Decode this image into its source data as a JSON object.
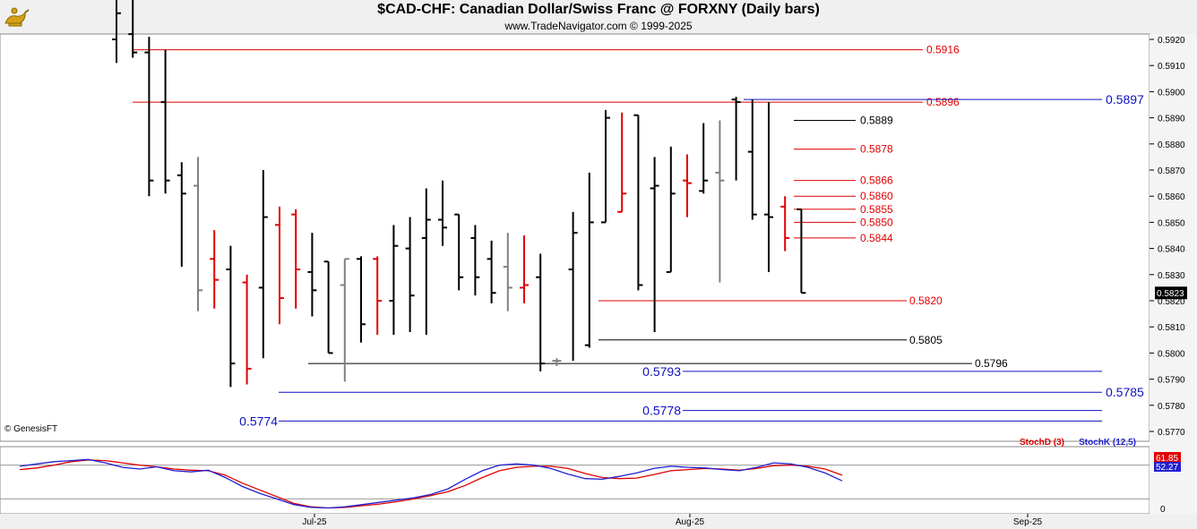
{
  "header": {
    "title": "$CAD-CHF:  Canadian Dollar/Swiss Franc @ FORXNY  (Daily bars)",
    "subtitle": "www.TradeNavigator.com © 1999-2025",
    "credit": "© GenesisFT"
  },
  "colors": {
    "up_bar": "#000000",
    "down_bar": "#e00000",
    "neutral_bar": "#808080",
    "resistance_line": "#e00000",
    "support_line": "#1010c0",
    "stoch_d": "#e00000",
    "stoch_k": "#2020d0"
  },
  "chart_data": [
    {
      "type": "ohlc",
      "title": "$CAD-CHF:  Canadian Dollar/Swiss Franc @ FORXNY  (Daily bars)",
      "ylim": [
        0.577,
        0.5924
      ],
      "y_ticks": [
        "0.5920",
        "0.5910",
        "0.5900",
        "0.5890",
        "0.5880",
        "0.5870",
        "0.5860",
        "0.5850",
        "0.5840",
        "0.5830",
        "0.5820",
        "0.5810",
        "0.5800",
        "0.5790",
        "0.5780",
        "0.5770"
      ],
      "x_tick_labels": [
        {
          "label": "Jul-25",
          "bar_index": 10
        },
        {
          "label": "Aug-25",
          "bar_index": 32
        },
        {
          "label": "Sep-25",
          "bar_index": 53
        }
      ],
      "last_price": "0.5823",
      "bars": [
        {
          "o": 0.592,
          "h": 0.5938,
          "l": 0.5911,
          "c": 0.593,
          "col": "up"
        },
        {
          "o": 0.5922,
          "h": 0.5945,
          "l": 0.5913,
          "c": 0.5915,
          "col": "up"
        },
        {
          "o": 0.5915,
          "h": 0.5921,
          "l": 0.586,
          "c": 0.5866,
          "col": "up"
        },
        {
          "o": 0.5896,
          "h": 0.5916,
          "l": 0.5861,
          "c": 0.5866,
          "col": "up"
        },
        {
          "o": 0.5868,
          "h": 0.5873,
          "l": 0.5833,
          "c": 0.5861,
          "col": "up"
        },
        {
          "o": 0.5864,
          "h": 0.5875,
          "l": 0.5816,
          "c": 0.5824,
          "col": "neutral"
        },
        {
          "o": 0.5836,
          "h": 0.5847,
          "l": 0.5817,
          "c": 0.5828,
          "col": "down"
        },
        {
          "o": 0.5832,
          "h": 0.5841,
          "l": 0.5787,
          "c": 0.5796,
          "col": "up"
        },
        {
          "o": 0.5827,
          "h": 0.583,
          "l": 0.5788,
          "c": 0.5794,
          "col": "down"
        },
        {
          "o": 0.5825,
          "h": 0.587,
          "l": 0.5798,
          "c": 0.5852,
          "col": "up"
        },
        {
          "o": 0.5849,
          "h": 0.5856,
          "l": 0.5811,
          "c": 0.5821,
          "col": "down"
        },
        {
          "o": 0.5853,
          "h": 0.5855,
          "l": 0.5817,
          "c": 0.5832,
          "col": "down"
        },
        {
          "o": 0.5831,
          "h": 0.5846,
          "l": 0.5814,
          "c": 0.5824,
          "col": "up"
        },
        {
          "o": 0.5835,
          "h": 0.5835,
          "l": 0.58,
          "c": 0.58,
          "col": "up"
        },
        {
          "o": 0.5826,
          "h": 0.5836,
          "l": 0.5789,
          "c": 0.5836,
          "col": "neutral"
        },
        {
          "o": 0.5836,
          "h": 0.5837,
          "l": 0.5804,
          "c": 0.5811,
          "col": "up"
        },
        {
          "o": 0.5836,
          "h": 0.5837,
          "l": 0.5807,
          "c": 0.582,
          "col": "down"
        },
        {
          "o": 0.582,
          "h": 0.5849,
          "l": 0.5807,
          "c": 0.5841,
          "col": "up"
        },
        {
          "o": 0.584,
          "h": 0.5852,
          "l": 0.5808,
          "c": 0.5822,
          "col": "up"
        },
        {
          "o": 0.5844,
          "h": 0.5863,
          "l": 0.5807,
          "c": 0.5851,
          "col": "up"
        },
        {
          "o": 0.5851,
          "h": 0.5866,
          "l": 0.5841,
          "c": 0.5848,
          "col": "up"
        },
        {
          "o": 0.5853,
          "h": 0.5853,
          "l": 0.5824,
          "c": 0.5829,
          "col": "up"
        },
        {
          "o": 0.5844,
          "h": 0.5849,
          "l": 0.5822,
          "c": 0.5829,
          "col": "up"
        },
        {
          "o": 0.5836,
          "h": 0.5843,
          "l": 0.5819,
          "c": 0.5823,
          "col": "up"
        },
        {
          "o": 0.5833,
          "h": 0.5846,
          "l": 0.5816,
          "c": 0.5825,
          "col": "neutral"
        },
        {
          "o": 0.5825,
          "h": 0.5845,
          "l": 0.5819,
          "c": 0.5826,
          "col": "down"
        },
        {
          "o": 0.5829,
          "h": 0.5838,
          "l": 0.5793,
          "c": 0.5796,
          "col": "up"
        },
        {
          "o": 0.5797,
          "h": 0.5798,
          "l": 0.5795,
          "c": 0.5797,
          "col": "neutral"
        },
        {
          "o": 0.5832,
          "h": 0.5854,
          "l": 0.5797,
          "c": 0.5846,
          "col": "up"
        },
        {
          "o": 0.5803,
          "h": 0.5869,
          "l": 0.5802,
          "c": 0.585,
          "col": "up"
        },
        {
          "o": 0.585,
          "h": 0.5893,
          "l": 0.585,
          "c": 0.589,
          "col": "up"
        },
        {
          "o": 0.5854,
          "h": 0.5892,
          "l": 0.5854,
          "c": 0.5861,
          "col": "down"
        },
        {
          "o": 0.5891,
          "h": 0.5891,
          "l": 0.5824,
          "c": 0.5826,
          "col": "up"
        },
        {
          "o": 0.5863,
          "h": 0.5875,
          "l": 0.5808,
          "c": 0.5864,
          "col": "up"
        },
        {
          "o": 0.5831,
          "h": 0.5879,
          "l": 0.5831,
          "c": 0.5861,
          "col": "up"
        },
        {
          "o": 0.5866,
          "h": 0.5876,
          "l": 0.5852,
          "c": 0.5865,
          "col": "down"
        },
        {
          "o": 0.5862,
          "h": 0.5888,
          "l": 0.5861,
          "c": 0.5866,
          "col": "up"
        },
        {
          "o": 0.5869,
          "h": 0.5889,
          "l": 0.5827,
          "c": 0.5866,
          "col": "neutral"
        },
        {
          "o": 0.5897,
          "h": 0.5898,
          "l": 0.5866,
          "c": 0.5896,
          "col": "up"
        },
        {
          "o": 0.5877,
          "h": 0.5897,
          "l": 0.5851,
          "c": 0.5853,
          "col": "up"
        },
        {
          "o": 0.5853,
          "h": 0.5896,
          "l": 0.5831,
          "c": 0.5852,
          "col": "up"
        },
        {
          "o": 0.5856,
          "h": 0.586,
          "l": 0.5839,
          "c": 0.5844,
          "col": "down"
        },
        {
          "o": 0.5855,
          "h": 0.5855,
          "l": 0.5823,
          "c": 0.5823,
          "col": "up"
        }
      ],
      "levels": [
        {
          "value": 0.5916,
          "label": "0.5916",
          "kind": "resistance",
          "from_bar": 1,
          "to_bar": 40
        },
        {
          "value": 0.5896,
          "label": "0.5896",
          "kind": "resistance",
          "from_bar": 1,
          "to_bar": 40
        },
        {
          "value": 0.5897,
          "label": "0.5897",
          "kind": "support",
          "from_bar": 38,
          "to_bar": 50
        },
        {
          "value": 0.5889,
          "label": "0.5889",
          "kind": "neutral",
          "from_bar": 39,
          "to_bar": 43
        },
        {
          "value": 0.5878,
          "label": "0.5878",
          "kind": "resistance",
          "from_bar": 39,
          "to_bar": 43
        },
        {
          "value": 0.5866,
          "label": "0.5866",
          "kind": "resistance",
          "from_bar": 39,
          "to_bar": 43
        },
        {
          "value": 0.586,
          "label": "0.5860",
          "kind": "resistance",
          "from_bar": 39,
          "to_bar": 43
        },
        {
          "value": 0.5855,
          "label": "0.5855",
          "kind": "resistance",
          "from_bar": 39,
          "to_bar": 43
        },
        {
          "value": 0.585,
          "label": "0.5850",
          "kind": "resistance",
          "from_bar": 39,
          "to_bar": 43
        },
        {
          "value": 0.5844,
          "label": "0.5844",
          "kind": "resistance",
          "from_bar": 39,
          "to_bar": 43
        },
        {
          "value": 0.582,
          "label": "0.5820",
          "kind": "resistance",
          "from_bar": 26,
          "to_bar": 40
        },
        {
          "value": 0.5805,
          "label": "0.5805",
          "kind": "neutral",
          "from_bar": 26,
          "to_bar": 40
        },
        {
          "value": 0.5796,
          "label": "0.5796",
          "kind": "neutral",
          "from_bar": 7,
          "to_bar": 42
        },
        {
          "value": 0.5793,
          "label": "0.5793",
          "kind": "support",
          "from_bar": 27,
          "to_bar": 50
        },
        {
          "value": 0.5785,
          "label": "0.5785",
          "kind": "support",
          "from_bar": 6,
          "to_bar": 50
        },
        {
          "value": 0.5778,
          "label": "0.5778",
          "kind": "support",
          "from_bar": 29,
          "to_bar": 50
        },
        {
          "value": 0.5774,
          "label": "0.5774",
          "kind": "support",
          "from_bar": 6,
          "to_bar": 50
        }
      ]
    },
    {
      "type": "line",
      "title": "",
      "legend": [
        "StochD (3)",
        "StochK (12,5)"
      ],
      "ylim": [
        0,
        100
      ],
      "y_ticks": [
        "0"
      ],
      "last_values": [
        "61.85",
        "52.27"
      ],
      "series": [
        {
          "name": "StochD (3)",
          "values": [
            72,
            75,
            80,
            86,
            89,
            88,
            84,
            80,
            77,
            73,
            71,
            70,
            62,
            48,
            36,
            24,
            12,
            6,
            4,
            5,
            8,
            11,
            15,
            20,
            26,
            33,
            44,
            58,
            70,
            76,
            78,
            78,
            74,
            65,
            58,
            56,
            57,
            63,
            70,
            72,
            74,
            73,
            71,
            74,
            79,
            80,
            78,
            73,
            62
          ]
        },
        {
          "name": "StochK (12,5)",
          "values": [
            78,
            82,
            86,
            88,
            90,
            84,
            76,
            73,
            77,
            70,
            68,
            71,
            58,
            42,
            30,
            20,
            10,
            5,
            4,
            6,
            10,
            14,
            18,
            22,
            28,
            38,
            55,
            70,
            80,
            82,
            80,
            74,
            64,
            56,
            55,
            60,
            66,
            74,
            78,
            76,
            75,
            72,
            70,
            76,
            84,
            82,
            76,
            66,
            52
          ]
        }
      ]
    }
  ]
}
